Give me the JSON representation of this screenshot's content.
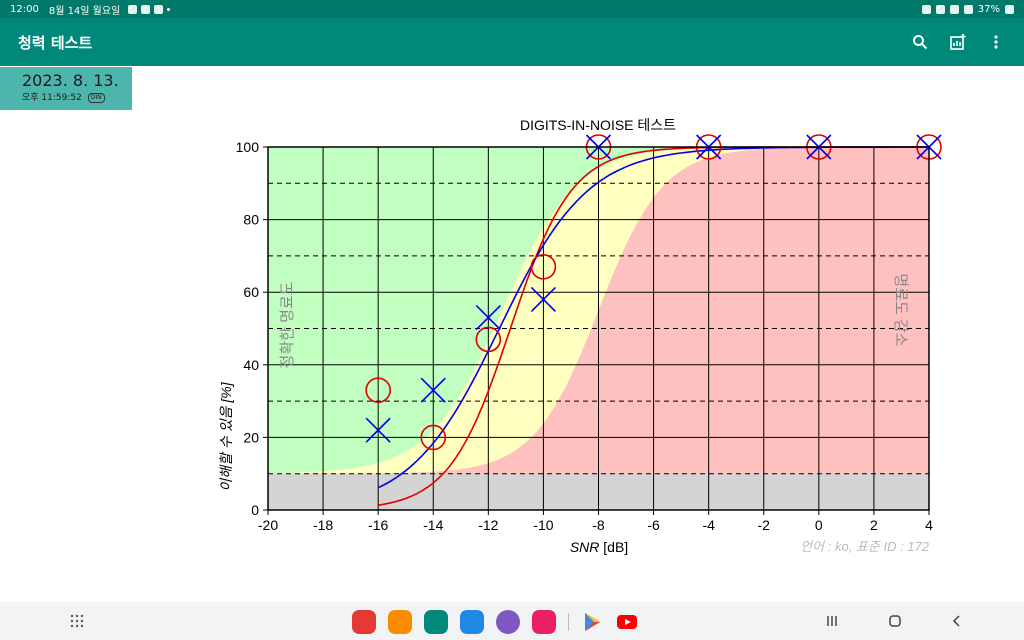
{
  "status_bar": {
    "time": "12:00",
    "date": "8월 14일 월요일",
    "battery": "37%"
  },
  "app_bar": {
    "title": "청력 테스트",
    "actions": [
      "search-icon",
      "add-chart-icon",
      "more-vert-icon"
    ]
  },
  "session": {
    "date": "2023. 8. 13.",
    "time": "오후 11:59:52",
    "badge": "DIN"
  },
  "colors": {
    "status_bar": "#00796b",
    "app_bar": "#00897b",
    "date_chip": "#4db6ac",
    "zone_good": "#c0ffc0",
    "zone_mid": "#ffffc0",
    "zone_bad": "#ffc0c0",
    "zone_floor": "#d4d4d4",
    "series_red": "#e00000",
    "series_blue": "#0000ee"
  },
  "chart_data": {
    "type": "scatter",
    "title": "DIGITS-IN-NOISE 테스트",
    "xlabel_italic": "SNR",
    "xlabel_unit": " [dB]",
    "ylabel": "이해할 수 있음 [%]",
    "xlim": [
      -20,
      4
    ],
    "ylim": [
      0,
      100
    ],
    "x_ticks": [
      -20,
      -18,
      -16,
      -14,
      -12,
      -10,
      -8,
      -6,
      -4,
      -2,
      0,
      2,
      4
    ],
    "y_ticks": [
      0,
      20,
      40,
      60,
      80,
      100
    ],
    "dashed_gridlines_y": [
      10,
      30,
      50,
      70,
      90
    ],
    "floor_level": 10,
    "zone_labels": {
      "left": "정확한 명료도",
      "right": "명료도 감소"
    },
    "footer": "언어 : ko, 표준 ID : 172",
    "zones": {
      "good_boundary": {
        "x0": -11.5,
        "k": 0.75
      },
      "bad_boundary": {
        "x0": -8.0,
        "k": 0.85
      }
    },
    "series": [
      {
        "marker": "circle",
        "color": "#e00000",
        "points": [
          {
            "x": -16,
            "y": 33
          },
          {
            "x": -14,
            "y": 20
          },
          {
            "x": -12,
            "y": 47
          },
          {
            "x": -10,
            "y": 67
          },
          {
            "x": -8,
            "y": 100
          },
          {
            "x": -4,
            "y": 100
          },
          {
            "x": 0,
            "y": 100
          },
          {
            "x": 4,
            "y": 100
          }
        ],
        "fit": {
          "x0": -11.2,
          "k": 0.9,
          "from": -16,
          "to": 4
        }
      },
      {
        "marker": "x",
        "color": "#0000ee",
        "points": [
          {
            "x": -16,
            "y": 22
          },
          {
            "x": -14,
            "y": 33
          },
          {
            "x": -12,
            "y": 53
          },
          {
            "x": -10,
            "y": 58
          },
          {
            "x": -8,
            "y": 100
          },
          {
            "x": -4,
            "y": 100
          },
          {
            "x": 0,
            "y": 100
          },
          {
            "x": 4,
            "y": 100
          }
        ],
        "fit": {
          "x0": -11.6,
          "k": 0.62,
          "from": -16,
          "to": 4
        }
      }
    ]
  }
}
